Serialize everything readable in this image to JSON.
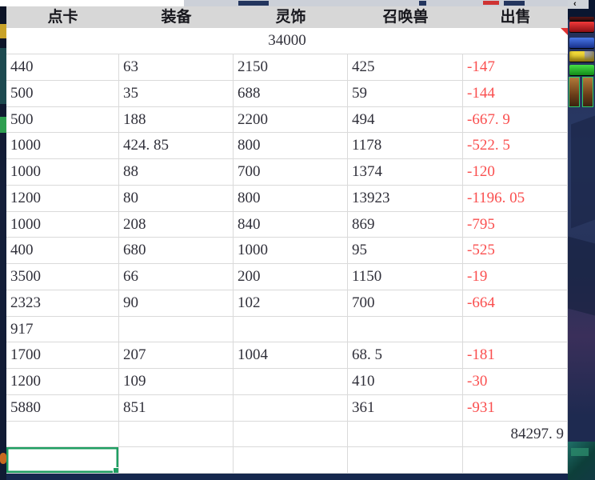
{
  "table": {
    "headers": [
      "点卡",
      "装备",
      "灵饰",
      "召唤兽",
      "出售"
    ],
    "merged_value": "34000",
    "rows": [
      [
        "440",
        "63",
        "2150",
        "425",
        "-147"
      ],
      [
        "500",
        "35",
        "688",
        "59",
        "-144"
      ],
      [
        "500",
        "188",
        "2200",
        "494",
        "-667. 9"
      ],
      [
        "1000",
        "424. 85",
        "800",
        "1178",
        "-522. 5"
      ],
      [
        "1000",
        "88",
        "700",
        "1374",
        "-120"
      ],
      [
        "1200",
        "80",
        "800",
        "13923",
        "-1196. 05"
      ],
      [
        "1000",
        "208",
        "840",
        "869",
        "-795"
      ],
      [
        "400",
        "680",
        "1000",
        "95",
        "-525"
      ],
      [
        "3500",
        "66",
        "200",
        "1150",
        "-19"
      ],
      [
        "2323",
        "90",
        "102",
        "700",
        "-664"
      ],
      [
        "917",
        "",
        "",
        "",
        ""
      ],
      [
        "1700",
        "207",
        "1004",
        "68. 5",
        "-181"
      ],
      [
        "1200",
        "109",
        "",
        "410",
        "-30"
      ],
      [
        "5880",
        "851",
        "",
        "361",
        "-931"
      ],
      [
        "",
        "",
        "",
        "",
        "84297. 9"
      ],
      [
        "",
        "",
        "",
        "",
        ""
      ]
    ],
    "right_aligned_cells": [
      [
        14,
        4
      ]
    ],
    "selection": {
      "row": 15,
      "col": 0
    }
  },
  "hud": {
    "back_arrow": "‹"
  },
  "colors": {
    "negative": "#fa4f4f",
    "text": "#30303a",
    "selection": "#1f9e62",
    "header_bg": "#d7d7d7",
    "grid_line": "#dadada",
    "game_navy": "#1c2f55"
  }
}
